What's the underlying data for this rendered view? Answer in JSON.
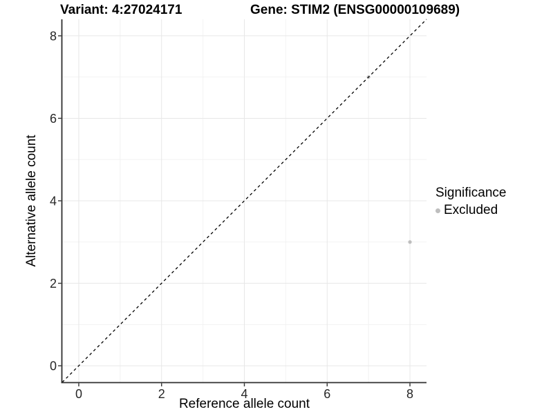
{
  "chart_data": {
    "type": "scatter",
    "title_left": "Variant: 4:27024171",
    "title_right": "Gene: STIM2 (ENSG00000109689)",
    "xlabel": "Reference allele count",
    "ylabel": "Alternative allele count",
    "xlim": [
      -0.4,
      8.4
    ],
    "ylim": [
      -0.4,
      8.4
    ],
    "xticks": [
      0,
      2,
      4,
      6,
      8
    ],
    "yticks": [
      0,
      2,
      4,
      6,
      8
    ],
    "xticks_minor": [
      1,
      3,
      5,
      7
    ],
    "yticks_minor": [
      1,
      3,
      5,
      7
    ],
    "grid": "major+minor",
    "reference_line": {
      "type": "identity",
      "style": "dashed",
      "color": "#000000"
    },
    "series": [
      {
        "name": "Excluded",
        "color": "#bebebe",
        "points": [
          [
            7,
            7
          ],
          [
            8,
            3
          ]
        ]
      }
    ],
    "legend": {
      "title": "Significance",
      "position": "right",
      "items": [
        {
          "label": "Excluded",
          "color": "#bebebe"
        }
      ]
    },
    "colors": {
      "background": "#ffffff",
      "axis_line": "#2e2e2e",
      "tick_mark": "#333333",
      "tick_label": "#262626",
      "grid_major": "#e7e7e7",
      "grid_minor": "#f2f2f2",
      "point": "#bebebe"
    }
  }
}
